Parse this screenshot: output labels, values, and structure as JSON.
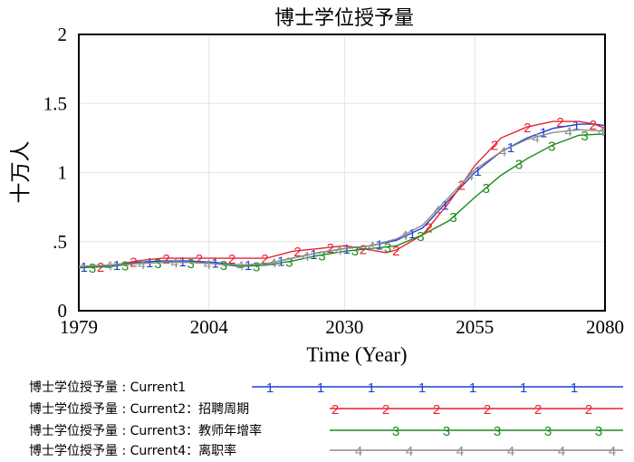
{
  "chart_data": {
    "type": "line",
    "title": "博士学位授予量",
    "xlabel": "Time (Year)",
    "ylabel": "十万人",
    "xlim": [
      1979,
      2080
    ],
    "ylim": [
      0,
      2
    ],
    "xticks": [
      1979,
      2004,
      2030,
      2055,
      2080
    ],
    "xtick_labels": [
      "1979",
      "2004",
      "2030",
      "2055",
      "2080"
    ],
    "yticks": [
      0,
      0.5,
      1,
      1.5,
      2
    ],
    "ytick_labels": [
      "0",
      ".5",
      "1",
      "1.5",
      "2"
    ],
    "grid": true,
    "series": [
      {
        "name": "Current1",
        "legend": "博士学位授予量 : Current1",
        "marker": "1",
        "color": "#1f3fd6",
        "x": [
          1979,
          1985,
          1990,
          1995,
          2000,
          2005,
          2010,
          2015,
          2020,
          2025,
          2030,
          2035,
          2040,
          2045,
          2050,
          2055,
          2060,
          2065,
          2070,
          2075,
          2078,
          2080
        ],
        "values": [
          0.32,
          0.33,
          0.35,
          0.36,
          0.36,
          0.35,
          0.33,
          0.34,
          0.38,
          0.42,
          0.45,
          0.47,
          0.51,
          0.6,
          0.8,
          1.0,
          1.15,
          1.25,
          1.32,
          1.35,
          1.35,
          1.34
        ]
      },
      {
        "name": "Current2",
        "legend": "博士学位授予量 : Current2：招聘周期",
        "marker": "2",
        "color": "#e8212b",
        "x": [
          1979,
          1985,
          1990,
          1995,
          2000,
          2005,
          2010,
          2015,
          2020,
          2025,
          2030,
          2035,
          2038,
          2040,
          2045,
          2050,
          2055,
          2060,
          2065,
          2070,
          2075,
          2078,
          2080
        ],
        "values": [
          0.32,
          0.32,
          0.36,
          0.38,
          0.38,
          0.38,
          0.38,
          0.38,
          0.43,
          0.45,
          0.47,
          0.44,
          0.42,
          0.44,
          0.55,
          0.78,
          1.05,
          1.25,
          1.33,
          1.37,
          1.37,
          1.35,
          1.32
        ]
      },
      {
        "name": "Current3",
        "legend": "博士学位授予量 : Current3：教师年增率",
        "marker": "3",
        "color": "#1b8a1b",
        "x": [
          1979,
          1985,
          1990,
          1995,
          2000,
          2005,
          2010,
          2015,
          2020,
          2025,
          2030,
          2035,
          2040,
          2045,
          2050,
          2055,
          2060,
          2065,
          2070,
          2075,
          2080
        ],
        "values": [
          0.31,
          0.32,
          0.34,
          0.35,
          0.35,
          0.34,
          0.32,
          0.33,
          0.36,
          0.4,
          0.43,
          0.45,
          0.47,
          0.55,
          0.65,
          0.82,
          0.98,
          1.1,
          1.2,
          1.27,
          1.28
        ]
      },
      {
        "name": "Current4",
        "legend": "博士学位授予量 : Current4：离职率",
        "marker": "4",
        "color": "#8c8c8c",
        "x": [
          1979,
          1985,
          1990,
          1995,
          2000,
          2005,
          2010,
          2015,
          2020,
          2025,
          2030,
          2035,
          2040,
          2045,
          2050,
          2055,
          2060,
          2065,
          2070,
          2075,
          2080
        ],
        "values": [
          0.32,
          0.33,
          0.34,
          0.35,
          0.35,
          0.34,
          0.33,
          0.34,
          0.38,
          0.42,
          0.45,
          0.47,
          0.52,
          0.62,
          0.82,
          1.02,
          1.15,
          1.24,
          1.29,
          1.31,
          1.3
        ]
      }
    ]
  }
}
